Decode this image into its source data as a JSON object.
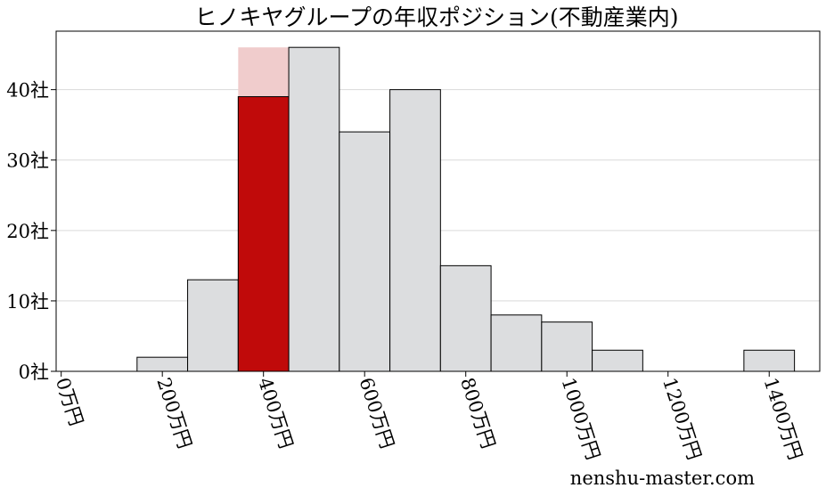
{
  "chart_data": {
    "type": "bar",
    "title": "ヒノキヤグループの年収ポジション(不動産業内)",
    "xlabel": "",
    "ylabel": "",
    "x_ticks": [
      {
        "value": 0,
        "label": "0万円"
      },
      {
        "value": 200,
        "label": "200万円"
      },
      {
        "value": 400,
        "label": "400万円"
      },
      {
        "value": 600,
        "label": "600万円"
      },
      {
        "value": 800,
        "label": "800万円"
      },
      {
        "value": 1000,
        "label": "1000万円"
      },
      {
        "value": 1200,
        "label": "1200万円"
      },
      {
        "value": 1400,
        "label": "1400万円"
      }
    ],
    "y_ticks": [
      {
        "value": 0,
        "label": "0社"
      },
      {
        "value": 10,
        "label": "10社"
      },
      {
        "value": 20,
        "label": "20社"
      },
      {
        "value": 30,
        "label": "30社"
      },
      {
        "value": 40,
        "label": "40社"
      }
    ],
    "xlim": [
      -10,
      1500
    ],
    "ylim": [
      0,
      48.3
    ],
    "grid": "horizontal",
    "bin_width": 100,
    "bins": [
      {
        "start": 150,
        "end": 250,
        "value": 2
      },
      {
        "start": 250,
        "end": 350,
        "value": 13
      },
      {
        "start": 350,
        "end": 450,
        "value": 46,
        "highlight_value": 39
      },
      {
        "start": 450,
        "end": 550,
        "value": 46
      },
      {
        "start": 550,
        "end": 650,
        "value": 34
      },
      {
        "start": 650,
        "end": 750,
        "value": 40
      },
      {
        "start": 750,
        "end": 850,
        "value": 15
      },
      {
        "start": 850,
        "end": 950,
        "value": 8
      },
      {
        "start": 950,
        "end": 1050,
        "value": 7
      },
      {
        "start": 1050,
        "end": 1150,
        "value": 3
      },
      {
        "start": 1150,
        "end": 1250,
        "value": 0
      },
      {
        "start": 1250,
        "end": 1350,
        "value": 0
      },
      {
        "start": 1350,
        "end": 1450,
        "value": 3
      }
    ],
    "colors": {
      "bar_fill": "#dcdddf",
      "bar_edge": "#000000",
      "highlight_fill": "#c00a0a",
      "highlight_background": "#f0cccc",
      "grid": "#d9d9d9"
    }
  },
  "watermark": "nenshu-master.com"
}
